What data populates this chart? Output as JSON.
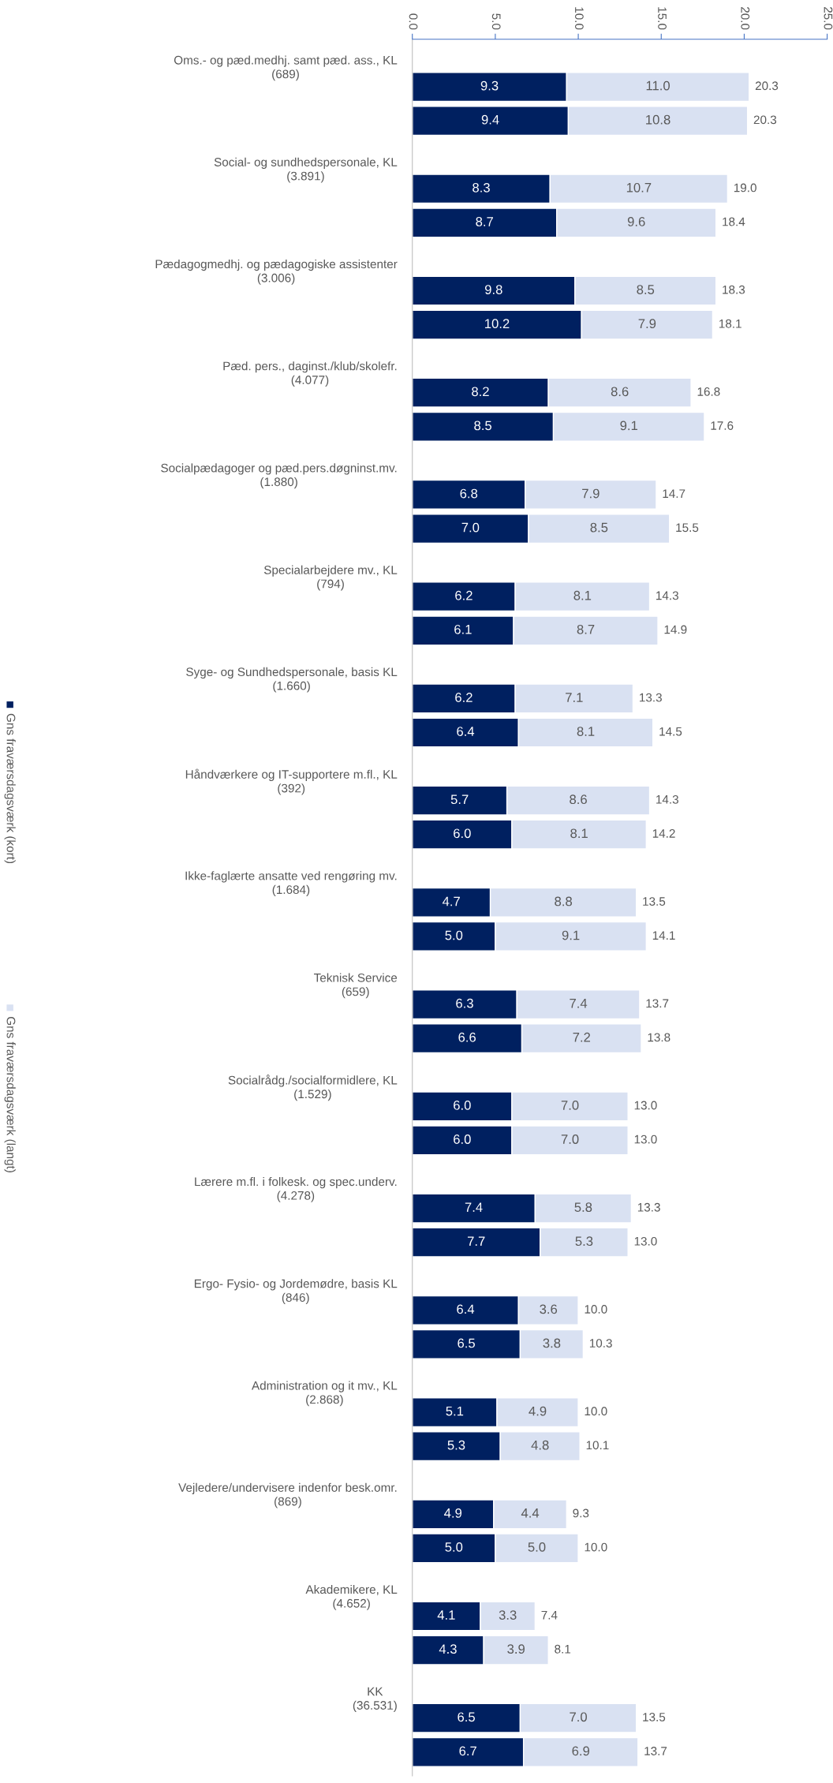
{
  "chart_data": {
    "type": "bar",
    "orientation": "horizontal",
    "stacked": true,
    "legend": "left",
    "grid": false,
    "categories": [
      "Oms.- og pæd.medhj. samt pæd. ass., KL\n(689)",
      null,
      "Social- og sundhedspersonale, KL\n(3.891)",
      null,
      "Pædagogmedhj. og pædagogiske assistenter\n(3.006)",
      null,
      "Pæd. pers., daginst./klub/skolefr.\n(4.077)",
      null,
      "Socialpædagoger og pæd.pers.døgninst.mv.\n(1.880)",
      null,
      "Specialarbejdere mv., KL\n(794)",
      null,
      "Syge- og Sundhedspersonale, basis KL\n(1.660)",
      null,
      "Håndværkere og IT-supportere m.fl., KL\n(392)",
      null,
      "Ikke-faglærte ansatte ved rengøring mv.\n(1.684)",
      null,
      "Teknisk Service\n(659)",
      null,
      "Socialrådg./socialformidlere, KL\n(1.529)",
      null,
      "Lærere m.fl. i folkesk. og spec.underv.\n(4.278)",
      null,
      "Ergo- Fysio- og Jordemødre, basis KL\n(846)",
      null,
      "Administration og it mv., KL\n(2.868)",
      null,
      "Vejledere/undervisere indenfor besk.omr.\n(869)",
      null,
      "Akademikere, KL\n(4.652)",
      null,
      "KK\n(36.531)",
      null
    ],
    "series": [
      {
        "name": "Gns fraværsdagsværk (kort)",
        "color": "#002060",
        "values": [
          9.3,
          9.4,
          8.3,
          8.7,
          9.8,
          10.2,
          8.2,
          8.5,
          6.8,
          7.0,
          6.2,
          6.1,
          6.2,
          6.4,
          5.7,
          6.0,
          4.7,
          5.0,
          6.3,
          6.6,
          6.0,
          6.0,
          7.4,
          7.7,
          6.4,
          6.5,
          5.1,
          5.3,
          4.9,
          5.0,
          4.1,
          4.3,
          6.5,
          6.7
        ],
        "value_labels": [
          "9.3",
          "9.4",
          "8.3",
          "8.7",
          "9.8",
          "10.2",
          "8.2",
          "8.5",
          "6.8",
          "7.0",
          "6.2",
          "6.1",
          "6.2",
          "6.4",
          "5.7",
          "6.0",
          "4.7",
          "5.0",
          "6.3",
          "6.6",
          "6.0",
          "6.0",
          "7.4",
          "7.7",
          "6.4",
          "6.5",
          "5.1",
          "5.3",
          "4.9",
          "5.0",
          "4.1",
          "4.3",
          "6.5",
          "6.7"
        ]
      },
      {
        "name": "Gns fraværsdagsværk (langt)",
        "color": "#d9e1f2",
        "values": [
          11.0,
          10.8,
          10.7,
          9.6,
          8.5,
          7.9,
          8.6,
          9.1,
          7.9,
          8.5,
          8.1,
          8.7,
          7.1,
          8.1,
          8.6,
          8.1,
          8.8,
          9.1,
          7.4,
          7.2,
          7.0,
          7.0,
          5.8,
          5.3,
          3.6,
          3.8,
          4.9,
          4.8,
          4.4,
          5.0,
          3.3,
          3.9,
          7.0,
          6.9
        ],
        "value_labels": [
          "11.0",
          "10.8",
          "10.7",
          "9.6",
          "8.5",
          "7.9",
          "8.6",
          "9.1",
          "7.9",
          "8.5",
          "8.1",
          "8.7",
          "7.1",
          "8.1",
          "8.6",
          "8.1",
          "8.8",
          "9.1",
          "7.4",
          "7.2",
          "7.0",
          "7.0",
          "5.8",
          "5.3",
          "3.6",
          "3.8",
          "4.9",
          "4.8",
          "4.4",
          "5.0",
          "3.3",
          "3.9",
          "7.0",
          "6.9"
        ]
      }
    ],
    "totals": [
      "20.3",
      "20.3",
      "19.0",
      "18.4",
      "18.3",
      "18.1",
      "16.8",
      "17.6",
      "14.7",
      "15.5",
      "14.3",
      "14.9",
      "13.3",
      "14.5",
      "14.3",
      "14.2",
      "13.5",
      "14.1",
      "13.7",
      "13.8",
      "13.0",
      "13.0",
      "13.3",
      "13.0",
      "10.0",
      "10.3",
      "10.0",
      "10.1",
      "9.3",
      "10.0",
      "7.4",
      "8.1",
      "13.5",
      "13.7"
    ],
    "xlim": [
      0,
      25
    ],
    "xticks": [
      {
        "value": 0,
        "label": "0.0"
      },
      {
        "value": 5,
        "label": "5.0"
      },
      {
        "value": 10,
        "label": "10.0"
      },
      {
        "value": 15,
        "label": "15.0"
      },
      {
        "value": 20,
        "label": "20.0"
      },
      {
        "value": 25,
        "label": "25.0"
      }
    ]
  }
}
